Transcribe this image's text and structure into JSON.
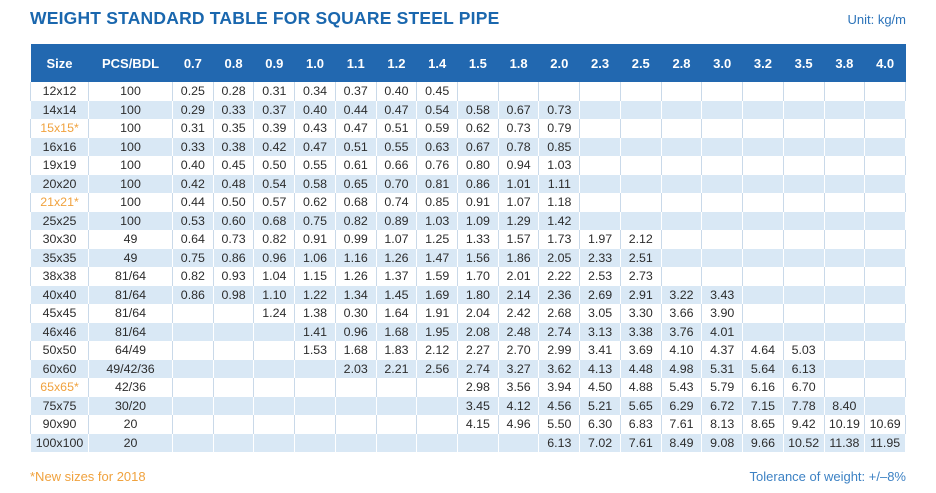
{
  "header": {
    "title": "WEIGHT STANDARD TABLE FOR SQUARE STEEL PIPE",
    "unit_label": "Unit: kg/m"
  },
  "chart_data": {
    "type": "table",
    "title": "WEIGHT STANDARD TABLE FOR SQUARE STEEL PIPE",
    "unit": "kg/m",
    "columns": [
      "Size",
      "PCS/BDL",
      "0.7",
      "0.8",
      "0.9",
      "1.0",
      "1.1",
      "1.2",
      "1.4",
      "1.5",
      "1.8",
      "2.0",
      "2.3",
      "2.5",
      "2.8",
      "3.0",
      "3.2",
      "3.5",
      "3.8",
      "4.0"
    ],
    "rows": [
      {
        "size": "12x12",
        "new_size": false,
        "pcs": "100",
        "weights": [
          "0.25",
          "0.28",
          "0.31",
          "0.34",
          "0.37",
          "0.40",
          "0.45",
          "",
          "",
          "",
          "",
          "",
          "",
          "",
          "",
          "",
          "",
          ""
        ]
      },
      {
        "size": "14x14",
        "new_size": false,
        "pcs": "100",
        "weights": [
          "0.29",
          "0.33",
          "0.37",
          "0.40",
          "0.44",
          "0.47",
          "0.54",
          "0.58",
          "0.67",
          "0.73",
          "",
          "",
          "",
          "",
          "",
          "",
          "",
          ""
        ]
      },
      {
        "size": "15x15*",
        "new_size": true,
        "pcs": "100",
        "weights": [
          "0.31",
          "0.35",
          "0.39",
          "0.43",
          "0.47",
          "0.51",
          "0.59",
          "0.62",
          "0.73",
          "0.79",
          "",
          "",
          "",
          "",
          "",
          "",
          "",
          ""
        ]
      },
      {
        "size": "16x16",
        "new_size": false,
        "pcs": "100",
        "weights": [
          "0.33",
          "0.38",
          "0.42",
          "0.47",
          "0.51",
          "0.55",
          "0.63",
          "0.67",
          "0.78",
          "0.85",
          "",
          "",
          "",
          "",
          "",
          "",
          "",
          ""
        ]
      },
      {
        "size": "19x19",
        "new_size": false,
        "pcs": "100",
        "weights": [
          "0.40",
          "0.45",
          "0.50",
          "0.55",
          "0.61",
          "0.66",
          "0.76",
          "0.80",
          "0.94",
          "1.03",
          "",
          "",
          "",
          "",
          "",
          "",
          "",
          ""
        ]
      },
      {
        "size": "20x20",
        "new_size": false,
        "pcs": "100",
        "weights": [
          "0.42",
          "0.48",
          "0.54",
          "0.58",
          "0.65",
          "0.70",
          "0.81",
          "0.86",
          "1.01",
          "1.11",
          "",
          "",
          "",
          "",
          "",
          "",
          "",
          ""
        ]
      },
      {
        "size": "21x21*",
        "new_size": true,
        "pcs": "100",
        "weights": [
          "0.44",
          "0.50",
          "0.57",
          "0.62",
          "0.68",
          "0.74",
          "0.85",
          "0.91",
          "1.07",
          "1.18",
          "",
          "",
          "",
          "",
          "",
          "",
          "",
          ""
        ]
      },
      {
        "size": "25x25",
        "new_size": false,
        "pcs": "100",
        "weights": [
          "0.53",
          "0.60",
          "0.68",
          "0.75",
          "0.82",
          "0.89",
          "1.03",
          "1.09",
          "1.29",
          "1.42",
          "",
          "",
          "",
          "",
          "",
          "",
          "",
          ""
        ]
      },
      {
        "size": "30x30",
        "new_size": false,
        "pcs": "49",
        "weights": [
          "0.64",
          "0.73",
          "0.82",
          "0.91",
          "0.99",
          "1.07",
          "1.25",
          "1.33",
          "1.57",
          "1.73",
          "1.97",
          "2.12",
          "",
          "",
          "",
          "",
          "",
          ""
        ]
      },
      {
        "size": "35x35",
        "new_size": false,
        "pcs": "49",
        "weights": [
          "0.75",
          "0.86",
          "0.96",
          "1.06",
          "1.16",
          "1.26",
          "1.47",
          "1.56",
          "1.86",
          "2.05",
          "2.33",
          "2.51",
          "",
          "",
          "",
          "",
          "",
          ""
        ]
      },
      {
        "size": "38x38",
        "new_size": false,
        "pcs": "81/64",
        "weights": [
          "0.82",
          "0.93",
          "1.04",
          "1.15",
          "1.26",
          "1.37",
          "1.59",
          "1.70",
          "2.01",
          "2.22",
          "2.53",
          "2.73",
          "",
          "",
          "",
          "",
          "",
          ""
        ]
      },
      {
        "size": "40x40",
        "new_size": false,
        "pcs": "81/64",
        "weights": [
          "0.86",
          "0.98",
          "1.10",
          "1.22",
          "1.34",
          "1.45",
          "1.69",
          "1.80",
          "2.14",
          "2.36",
          "2.69",
          "2.91",
          "3.22",
          "3.43",
          "",
          "",
          "",
          ""
        ]
      },
      {
        "size": "45x45",
        "new_size": false,
        "pcs": "81/64",
        "weights": [
          "",
          "",
          "1.24",
          "1.38",
          "0.30",
          "1.64",
          "1.91",
          "2.04",
          "2.42",
          "2.68",
          "3.05",
          "3.30",
          "3.66",
          "3.90",
          "",
          "",
          "",
          ""
        ]
      },
      {
        "size": "46x46",
        "new_size": false,
        "pcs": "81/64",
        "weights": [
          "",
          "",
          "",
          "1.41",
          "0.96",
          "1.68",
          "1.95",
          "2.08",
          "2.48",
          "2.74",
          "3.13",
          "3.38",
          "3.76",
          "4.01",
          "",
          "",
          "",
          ""
        ]
      },
      {
        "size": "50x50",
        "new_size": false,
        "pcs": "64/49",
        "weights": [
          "",
          "",
          "",
          "1.53",
          "1.68",
          "1.83",
          "2.12",
          "2.27",
          "2.70",
          "2.99",
          "3.41",
          "3.69",
          "4.10",
          "4.37",
          "4.64",
          "5.03",
          "",
          ""
        ]
      },
      {
        "size": "60x60",
        "new_size": false,
        "pcs": "49/42/36",
        "weights": [
          "",
          "",
          "",
          "",
          "2.03",
          "2.21",
          "2.56",
          "2.74",
          "3.27",
          "3.62",
          "4.13",
          "4.48",
          "4.98",
          "5.31",
          "5.64",
          "6.13",
          "",
          ""
        ]
      },
      {
        "size": "65x65*",
        "new_size": true,
        "pcs": "42/36",
        "weights": [
          "",
          "",
          "",
          "",
          "",
          "",
          "",
          "2.98",
          "3.56",
          "3.94",
          "4.50",
          "4.88",
          "5.43",
          "5.79",
          "6.16",
          "6.70",
          "",
          ""
        ]
      },
      {
        "size": "75x75",
        "new_size": false,
        "pcs": "30/20",
        "weights": [
          "",
          "",
          "",
          "",
          "",
          "",
          "",
          "3.45",
          "4.12",
          "4.56",
          "5.21",
          "5.65",
          "6.29",
          "6.72",
          "7.15",
          "7.78",
          "8.40",
          ""
        ]
      },
      {
        "size": "90x90",
        "new_size": false,
        "pcs": "20",
        "weights": [
          "",
          "",
          "",
          "",
          "",
          "",
          "",
          "4.15",
          "4.96",
          "5.50",
          "6.30",
          "6.83",
          "7.61",
          "8.13",
          "8.65",
          "9.42",
          "10.19",
          "10.69"
        ]
      },
      {
        "size": "100x100",
        "new_size": false,
        "pcs": "20",
        "weights": [
          "",
          "",
          "",
          "",
          "",
          "",
          "",
          "",
          "",
          "6.13",
          "7.02",
          "7.61",
          "8.49",
          "9.08",
          "9.66",
          "10.52",
          "11.38",
          "11.95"
        ]
      }
    ]
  },
  "footer": {
    "note": "*New sizes for 2018",
    "tolerance": "Tolerance of weight: +/–8%"
  },
  "colors": {
    "header_bg": "#2268b0",
    "title_blue": "#1a67ae",
    "alt_row_blue": "#d9e8f5",
    "accent_orange": "#f0a23e",
    "tolerance_blue": "#3d82c4",
    "cell_border": "#c9d9e9"
  }
}
